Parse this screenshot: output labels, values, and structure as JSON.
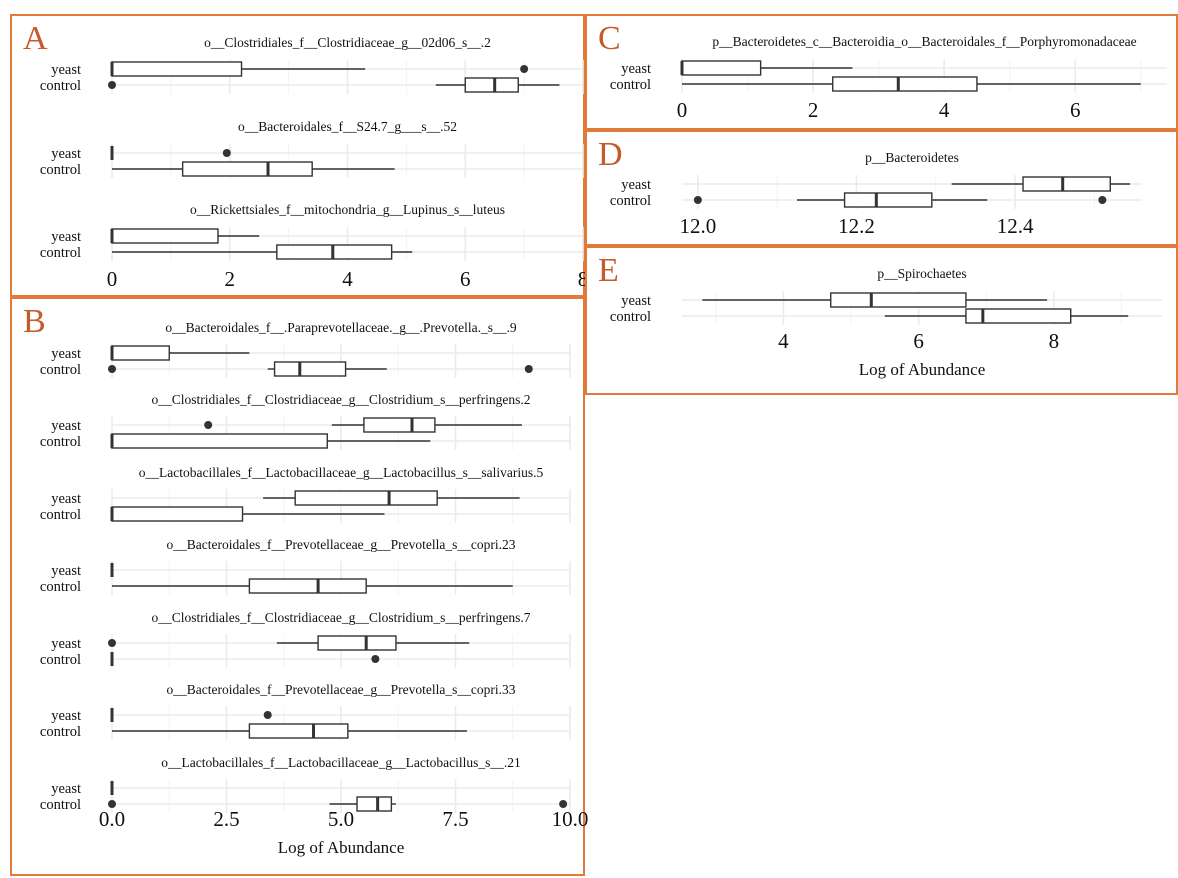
{
  "x_label": "Log of Abundance",
  "group_labels": [
    "yeast",
    "control"
  ],
  "colors": {
    "border": "#e07b39",
    "letter": "#c55a2a",
    "grid": "#ebebeb",
    "ink": "#333333"
  },
  "chart_data": [
    {
      "panel": "A",
      "type": "boxplot",
      "orientation": "horizontal",
      "xlim": [
        0,
        8
      ],
      "x_ticks": [
        0,
        2,
        4,
        6,
        8
      ],
      "tick_labels": [
        "0",
        "2",
        "4",
        "6",
        "8"
      ],
      "xlabel": "",
      "facets": [
        {
          "title": "o__Clostridiales_f__Clostridiaceae_g__02d06_s__.2",
          "yeast": {
            "min": 0,
            "q1": 0,
            "median": 0,
            "q3": 2.2,
            "max": 4.3,
            "outliers": [
              7.0
            ]
          },
          "control": {
            "min": 5.5,
            "q1": 6.0,
            "median": 6.5,
            "q3": 6.9,
            "max": 7.6,
            "outliers": [
              0
            ]
          }
        },
        {
          "title": "o__Bacteroidales_f__S24.7_g___s__.52",
          "yeast": {
            "min": 0,
            "q1": 0,
            "median": 0,
            "q3": 0,
            "max": 0,
            "outliers": [
              1.95
            ]
          },
          "control": {
            "min": 0,
            "q1": 1.2,
            "median": 2.65,
            "q3": 3.4,
            "max": 4.8,
            "outliers": []
          }
        },
        {
          "title": "o__Rickettsiales_f__mitochondria_g__Lupinus_s__luteus",
          "yeast": {
            "min": 0,
            "q1": 0,
            "median": 0,
            "q3": 1.8,
            "max": 2.5,
            "outliers": []
          },
          "control": {
            "min": 0,
            "q1": 2.8,
            "median": 3.75,
            "q3": 4.75,
            "max": 5.1,
            "outliers": []
          }
        }
      ]
    },
    {
      "panel": "B",
      "type": "boxplot",
      "orientation": "horizontal",
      "xlim": [
        0,
        10
      ],
      "x_ticks": [
        0,
        2.5,
        5,
        7.5,
        10
      ],
      "tick_labels": [
        "0.0",
        "2.5",
        "5.0",
        "7.5",
        "10.0"
      ],
      "xlabel": "Log of Abundance",
      "facets": [
        {
          "title": "o__Bacteroidales_f__.Paraprevotellaceae._g__.Prevotella._s__.9",
          "yeast": {
            "min": 0,
            "q1": 0,
            "median": 0,
            "q3": 1.25,
            "max": 3.0,
            "outliers": []
          },
          "control": {
            "min": 3.4,
            "q1": 3.55,
            "median": 4.1,
            "q3": 5.1,
            "max": 6.0,
            "outliers": [
              0,
              9.1
            ]
          }
        },
        {
          "title": "o__Clostridiales_f__Clostridiaceae_g__Clostridium_s__perfringens.2",
          "yeast": {
            "min": 4.8,
            "q1": 5.5,
            "median": 6.55,
            "q3": 7.05,
            "max": 8.95,
            "outliers": [
              2.1
            ]
          },
          "control": {
            "min": 0,
            "q1": 0,
            "median": 0,
            "q3": 4.7,
            "max": 6.95,
            "outliers": []
          }
        },
        {
          "title": "o__Lactobacillales_f__Lactobacillaceae_g__Lactobacillus_s__salivarius.5",
          "yeast": {
            "min": 3.3,
            "q1": 4.0,
            "median": 6.05,
            "q3": 7.1,
            "max": 8.9,
            "outliers": []
          },
          "control": {
            "min": 0,
            "q1": 0,
            "median": 0,
            "q3": 2.85,
            "max": 5.95,
            "outliers": []
          }
        },
        {
          "title": "o__Bacteroidales_f__Prevotellaceae_g__Prevotella_s__copri.23",
          "yeast": {
            "min": 0,
            "q1": 0,
            "median": 0,
            "q3": 0,
            "max": 0,
            "outliers": []
          },
          "control": {
            "min": 0,
            "q1": 3.0,
            "median": 4.5,
            "q3": 5.55,
            "max": 8.75,
            "outliers": []
          }
        },
        {
          "title": "o__Clostridiales_f__Clostridiaceae_g__Clostridium_s__perfringens.7",
          "yeast": {
            "min": 3.6,
            "q1": 4.5,
            "median": 5.55,
            "q3": 6.2,
            "max": 7.8,
            "outliers": [
              0
            ]
          },
          "control": {
            "min": 0,
            "q1": 0,
            "median": 0,
            "q3": 0,
            "max": 0,
            "outliers": [
              5.75
            ]
          }
        },
        {
          "title": "o__Bacteroidales_f__Prevotellaceae_g__Prevotella_s__copri.33",
          "yeast": {
            "min": 0,
            "q1": 0,
            "median": 0,
            "q3": 0,
            "max": 0,
            "outliers": [
              3.4
            ]
          },
          "control": {
            "min": 0,
            "q1": 3.0,
            "median": 4.4,
            "q3": 5.15,
            "max": 7.75,
            "outliers": []
          }
        },
        {
          "title": "o__Lactobacillales_f__Lactobacillaceae_g__Lactobacillus_s__.21",
          "yeast": {
            "min": 0,
            "q1": 0,
            "median": 0,
            "q3": 0,
            "max": 0,
            "outliers": []
          },
          "control": {
            "min": 4.75,
            "q1": 5.35,
            "median": 5.8,
            "q3": 6.1,
            "max": 6.2,
            "outliers": [
              0,
              9.85
            ]
          }
        }
      ]
    },
    {
      "panel": "C",
      "type": "boxplot",
      "orientation": "horizontal",
      "xlim": [
        0,
        7.4
      ],
      "x_ticks": [
        0,
        2,
        4,
        6
      ],
      "tick_labels": [
        "0",
        "2",
        "4",
        "6"
      ],
      "xlabel": "",
      "facets": [
        {
          "title": "p__Bacteroidetes_c__Bacteroidia_o__Bacteroidales_f__Porphyromonadaceae",
          "yeast": {
            "min": 0,
            "q1": 0,
            "median": 0,
            "q3": 1.2,
            "max": 2.6,
            "outliers": []
          },
          "control": {
            "min": 0,
            "q1": 2.3,
            "median": 3.3,
            "q3": 4.5,
            "max": 7.0,
            "outliers": []
          }
        }
      ]
    },
    {
      "panel": "D",
      "type": "boxplot",
      "orientation": "horizontal",
      "xlim": [
        11.98,
        12.56
      ],
      "x_ticks": [
        12.0,
        12.2,
        12.4
      ],
      "tick_labels": [
        "12.0",
        "12.2",
        "12.4"
      ],
      "xlabel": "",
      "facets": [
        {
          "title": "p__Bacteroidetes",
          "yeast": {
            "min": 12.32,
            "q1": 12.41,
            "median": 12.46,
            "q3": 12.52,
            "max": 12.545,
            "outliers": []
          },
          "control": {
            "min": 12.125,
            "q1": 12.185,
            "median": 12.225,
            "q3": 12.295,
            "max": 12.365,
            "outliers": [
              12.0,
              12.51
            ]
          }
        }
      ]
    },
    {
      "panel": "E",
      "type": "boxplot",
      "orientation": "horizontal",
      "xlim": [
        2.5,
        9.6
      ],
      "x_ticks": [
        4,
        6,
        8
      ],
      "tick_labels": [
        "4",
        "6",
        "8"
      ],
      "xlabel": "Log of Abundance",
      "facets": [
        {
          "title": "p__Spirochaetes",
          "yeast": {
            "min": 2.8,
            "q1": 4.7,
            "median": 5.3,
            "q3": 6.7,
            "max": 7.9,
            "outliers": []
          },
          "control": {
            "min": 5.5,
            "q1": 6.7,
            "median": 6.95,
            "q3": 8.25,
            "max": 9.1,
            "outliers": []
          }
        }
      ]
    }
  ]
}
